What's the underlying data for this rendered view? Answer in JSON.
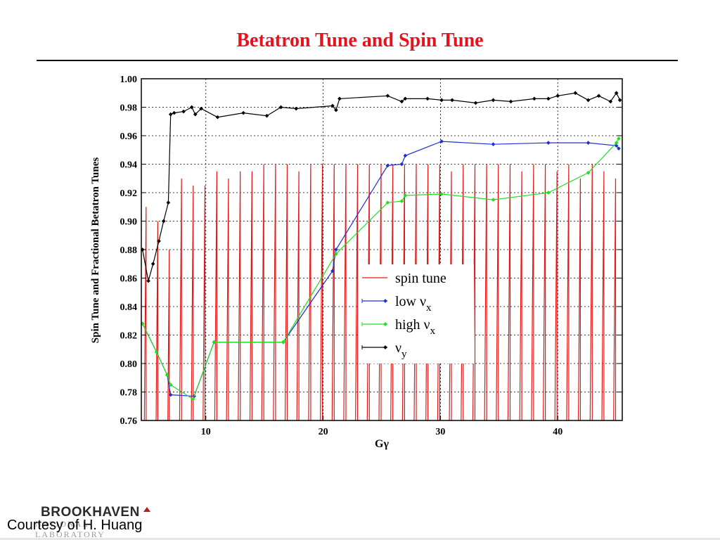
{
  "slide": {
    "title": "Betatron Tune and Spin Tune",
    "credit": "Courtesy of H. Huang",
    "logo_main": "BROOKHAVEN",
    "logo_sub": "NATIONAL LABORATORY"
  },
  "colors": {
    "title": "#e8121c",
    "spin": "#e31a1a",
    "low_nux": "#1f2fd6",
    "high_nux": "#22dd22",
    "nuy": "#000000"
  },
  "chart_data": {
    "type": "line",
    "xlabel": "Gγ",
    "ylabel": "Spin Tune and Fractional Betatron Tunes",
    "xlim": [
      4.5,
      45.5
    ],
    "ylim": [
      0.76,
      1.0
    ],
    "xticks": [
      "10",
      "20",
      "30",
      "40"
    ],
    "xtick_values": [
      10,
      20,
      30,
      40
    ],
    "yticks": [
      "0.76",
      "0.78",
      "0.80",
      "0.82",
      "0.84",
      "0.86",
      "0.88",
      "0.90",
      "0.92",
      "0.94",
      "0.96",
      "0.98",
      "1.00"
    ],
    "ytick_values": [
      0.76,
      0.78,
      0.8,
      0.82,
      0.84,
      0.86,
      0.88,
      0.9,
      0.92,
      0.94,
      0.96,
      0.98,
      1.0
    ],
    "grid": true,
    "legend_position": "center-right",
    "legend": [
      {
        "label": "spin tune",
        "sub": "",
        "key": "spin"
      },
      {
        "label": "low ν",
        "sub": "x",
        "key": "low_nux"
      },
      {
        "label": "high ν",
        "sub": "x",
        "key": "high_nux"
      },
      {
        "label": "ν",
        "sub": "y",
        "key": "nuy"
      }
    ],
    "spin_tune": {
      "description_curve": "fractional part of Gγ, ranging 0 to 1",
      "peak_values": [
        0.91,
        0.9,
        0.88,
        0.93,
        0.925,
        0.925,
        0.935,
        0.93,
        0.935,
        0.935,
        0.94,
        0.94,
        0.94,
        0.935,
        0.94,
        0.94,
        0.94,
        0.94,
        0.94,
        0.94,
        0.94,
        0.94,
        0.94,
        0.94,
        0.94,
        0.94,
        0.935,
        0.94,
        0.94,
        0.94,
        0.94,
        0.94,
        0.935,
        0.94,
        0.94,
        0.935,
        0.94,
        0.93,
        0.94,
        0.935,
        0.93
      ]
    },
    "series": [
      {
        "name": "low νx",
        "key": "low_nux",
        "x": [
          4.6,
          5.8,
          6.7,
          7.0,
          9.0,
          10.7,
          16.6,
          20.8,
          21.1,
          25.5,
          26.7,
          27.0,
          30.1,
          34.5,
          39.2,
          42.6,
          45.0,
          45.2
        ],
        "y": [
          0.828,
          0.808,
          0.792,
          0.778,
          0.777,
          0.815,
          0.815,
          0.865,
          0.88,
          0.939,
          0.94,
          0.946,
          0.956,
          0.954,
          0.955,
          0.955,
          0.953,
          0.951
        ]
      },
      {
        "name": "high νx",
        "key": "high_nux",
        "x": [
          4.6,
          5.8,
          6.7,
          7.0,
          8.9,
          10.7,
          16.6,
          21.1,
          25.5,
          26.7,
          27.0,
          30.1,
          34.5,
          39.2,
          42.6,
          45.0,
          45.2
        ],
        "y": [
          0.828,
          0.808,
          0.792,
          0.785,
          0.775,
          0.815,
          0.815,
          0.877,
          0.913,
          0.914,
          0.918,
          0.919,
          0.915,
          0.92,
          0.934,
          0.955,
          0.958
        ]
      },
      {
        "name": "νy",
        "key": "nuy",
        "x": [
          4.6,
          5.1,
          5.5,
          6.0,
          6.4,
          6.8,
          7.0,
          7.3,
          8.1,
          8.8,
          9.1,
          9.6,
          11.0,
          13.2,
          15.2,
          16.4,
          17.7,
          20.8,
          21.1,
          21.4,
          25.5,
          26.7,
          27.0,
          28.9,
          30.1,
          31.0,
          33.0,
          34.5,
          36.0,
          38.0,
          39.2,
          40.0,
          41.5,
          42.6,
          43.5,
          44.5,
          45.0,
          45.3
        ],
        "y": [
          0.88,
          0.858,
          0.87,
          0.886,
          0.9,
          0.913,
          0.975,
          0.976,
          0.977,
          0.98,
          0.975,
          0.979,
          0.973,
          0.976,
          0.974,
          0.98,
          0.979,
          0.981,
          0.978,
          0.986,
          0.988,
          0.984,
          0.986,
          0.986,
          0.985,
          0.985,
          0.983,
          0.985,
          0.984,
          0.986,
          0.986,
          0.988,
          0.99,
          0.985,
          0.988,
          0.984,
          0.99,
          0.985
        ]
      }
    ]
  }
}
